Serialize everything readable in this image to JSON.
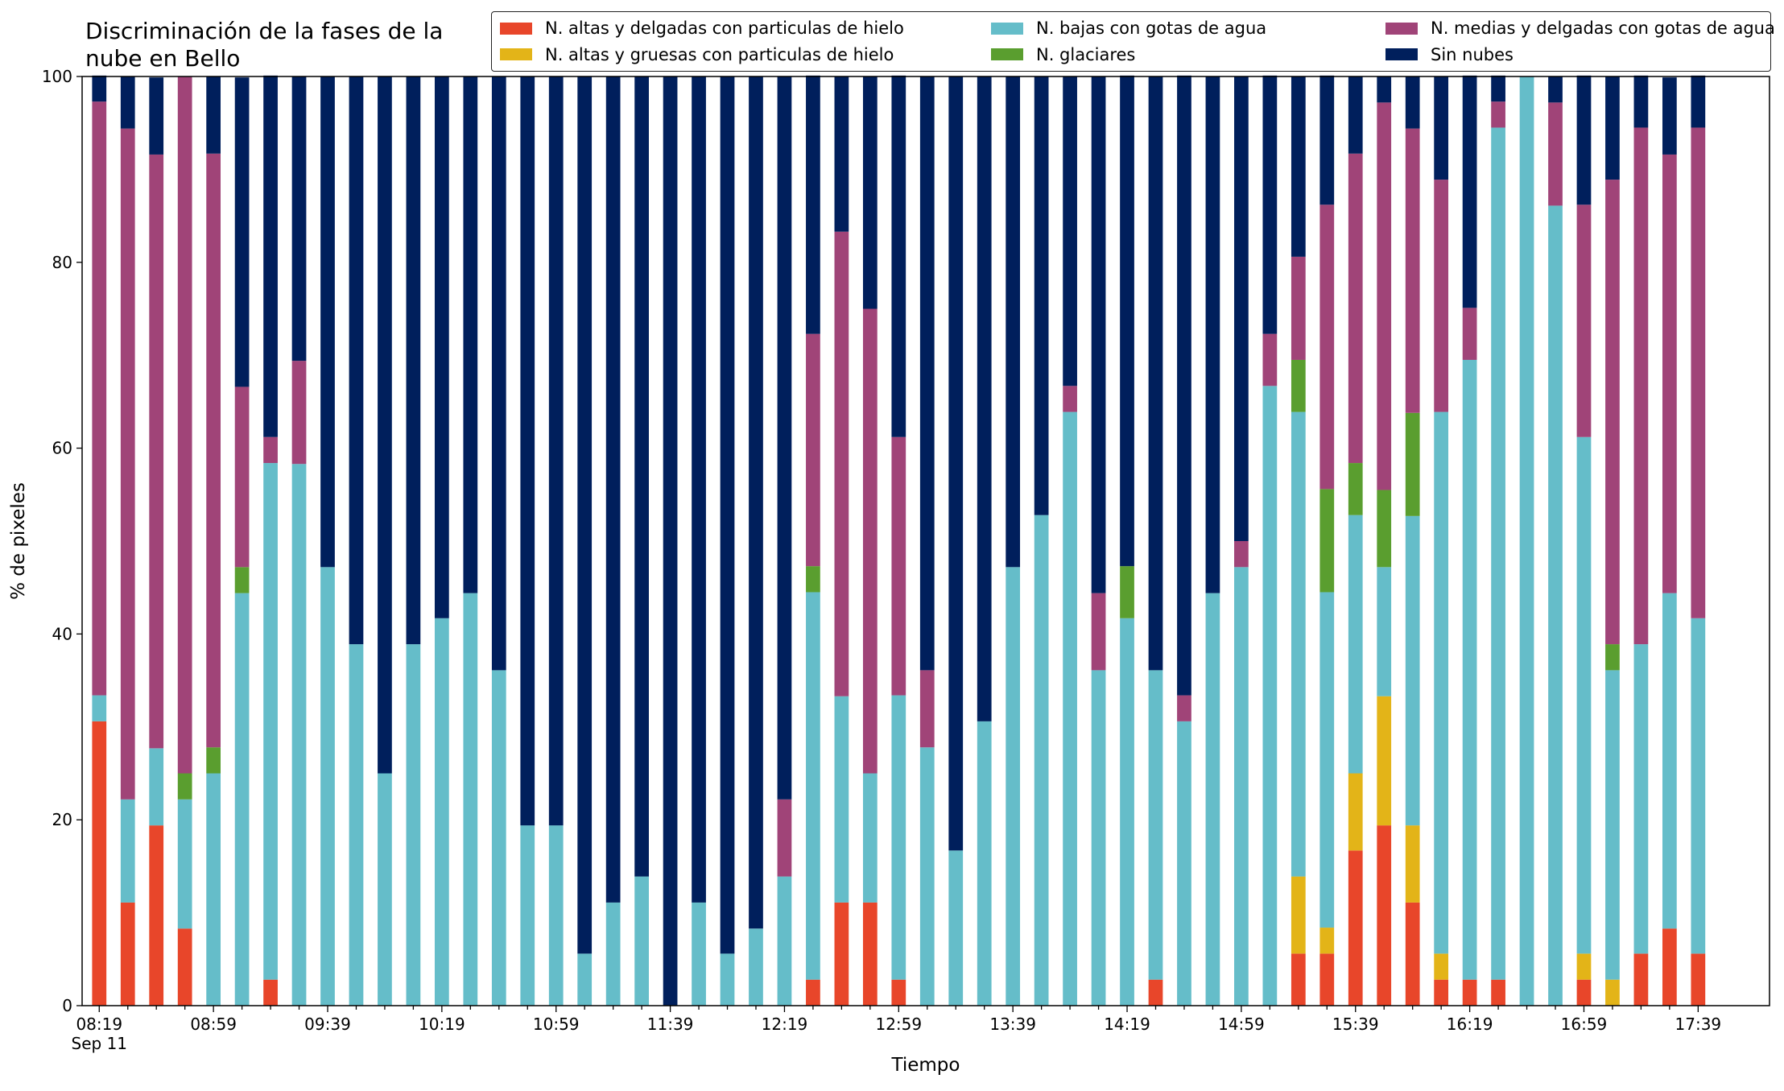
{
  "chart_data": {
    "type": "stacked-bar",
    "title": "Discriminación de la fases de la\nnube en Bello",
    "x_label": "Tiempo",
    "y_label": "% de pixeles",
    "x_date_label": "Sep 11",
    "categories": [
      "08:19",
      null,
      null,
      null,
      "08:59",
      null,
      null,
      null,
      "09:39",
      null,
      null,
      null,
      "10:19",
      null,
      null,
      null,
      "10:59",
      null,
      null,
      null,
      "11:39",
      null,
      null,
      null,
      "12:19",
      null,
      null,
      null,
      "12:59",
      null,
      null,
      null,
      "13:39",
      null,
      null,
      null,
      "14:19",
      null,
      null,
      null,
      "14:59",
      null,
      null,
      null,
      "15:39",
      null,
      null,
      null,
      "16:19",
      null,
      null,
      null,
      "16:59",
      null,
      null,
      null,
      "17:39"
    ],
    "xlim": [
      -0.6,
      58.5
    ],
    "ylim": [
      0,
      100
    ],
    "yticks": [
      0,
      20,
      40,
      60,
      80,
      100
    ],
    "grid": false,
    "legend": "above",
    "legend_columns": 3,
    "series": [
      {
        "name": "N. altas y delgadas con particulas de hielo",
        "color": "#e8462a",
        "values": [
          30.6,
          11.1,
          19.4,
          8.3,
          0,
          0,
          2.8,
          0,
          0,
          0,
          0,
          0,
          0,
          0,
          0,
          0,
          0,
          0,
          0,
          0,
          0,
          0,
          0,
          0,
          0,
          2.8,
          11.1,
          11.1,
          2.8,
          0,
          0,
          0,
          0,
          0,
          0,
          0,
          0,
          2.8,
          0,
          0,
          0,
          0,
          5.6,
          5.6,
          16.7,
          19.4,
          11.1,
          2.8,
          2.8,
          2.8,
          0,
          0,
          2.8,
          0,
          5.6,
          8.3,
          5.6
        ]
      },
      {
        "name": "N. altas y gruesas con particulas de hielo",
        "color": "#e3b418",
        "values": [
          0,
          0,
          0,
          0,
          0,
          0,
          0,
          0,
          0,
          0,
          0,
          0,
          0,
          0,
          0,
          0,
          0,
          0,
          0,
          0,
          0,
          0,
          0,
          0,
          0,
          0,
          0,
          0,
          0,
          0,
          0,
          0,
          0,
          0,
          0,
          0,
          0,
          0,
          0,
          0,
          0,
          0,
          8.3,
          2.8,
          8.3,
          13.9,
          8.3,
          2.8,
          0,
          0,
          0,
          0,
          2.8,
          2.8,
          0,
          0,
          0
        ]
      },
      {
        "name": "N. bajas con gotas de agua",
        "color": "#65bdc9",
        "values": [
          2.8,
          11.1,
          8.3,
          13.9,
          25,
          44.4,
          55.6,
          58.3,
          47.2,
          38.9,
          25,
          38.9,
          41.7,
          44.4,
          36.1,
          19.4,
          19.4,
          5.6,
          11.1,
          13.9,
          0,
          11.1,
          5.6,
          8.3,
          13.9,
          41.7,
          22.2,
          13.9,
          30.6,
          27.8,
          16.7,
          30.6,
          47.2,
          52.8,
          63.9,
          36.1,
          41.7,
          33.3,
          30.6,
          44.4,
          47.2,
          66.7,
          50,
          36.1,
          27.8,
          13.9,
          33.3,
          58.3,
          66.7,
          91.7,
          100,
          86.1,
          55.6,
          33.3,
          33.3,
          36.1,
          36.1
        ]
      },
      {
        "name": "N. glaciares",
        "color": "#5a9e2f",
        "values": [
          0,
          0,
          0,
          2.8,
          2.8,
          2.8,
          0,
          0,
          0,
          0,
          0,
          0,
          0,
          0,
          0,
          0,
          0,
          0,
          0,
          0,
          0,
          0,
          0,
          0,
          0,
          2.8,
          0,
          0,
          0,
          0,
          0,
          0,
          0,
          0,
          0,
          0,
          5.6,
          0,
          0,
          0,
          0,
          0,
          5.6,
          11.1,
          5.6,
          8.3,
          11.1,
          0,
          0,
          0,
          0,
          0,
          0,
          2.8,
          0,
          0,
          0
        ]
      },
      {
        "name": "N. medias y delgadas con gotas de agua",
        "color": "#a04478",
        "values": [
          63.9,
          72.2,
          63.9,
          75,
          63.9,
          19.4,
          2.8,
          11.1,
          0,
          0,
          0,
          0,
          0,
          0,
          0,
          0,
          0,
          0,
          0,
          0,
          0,
          0,
          0,
          0,
          8.3,
          25,
          50,
          50,
          27.8,
          8.3,
          0,
          0,
          0,
          0,
          2.8,
          8.3,
          0,
          0,
          2.8,
          0,
          2.8,
          5.6,
          11.1,
          30.6,
          33.3,
          41.7,
          30.6,
          25,
          5.6,
          2.8,
          0,
          11.1,
          25,
          50,
          55.6,
          47.2,
          52.8
        ]
      },
      {
        "name": "Sin nubes",
        "color": "#001f5c",
        "values": [
          2.8,
          5.6,
          8.3,
          0,
          8.3,
          33.3,
          38.9,
          30.6,
          52.8,
          61.1,
          75,
          61.1,
          58.3,
          55.6,
          63.9,
          80.6,
          80.6,
          94.4,
          88.9,
          86.1,
          100,
          88.9,
          94.4,
          91.7,
          77.8,
          27.8,
          16.7,
          25,
          38.9,
          63.9,
          83.3,
          69.4,
          52.8,
          47.2,
          33.3,
          55.6,
          52.8,
          63.9,
          66.7,
          55.6,
          50,
          27.8,
          19.4,
          13.9,
          8.3,
          2.8,
          5.6,
          11.1,
          25,
          2.8,
          0,
          2.8,
          13.9,
          11.1,
          5.6,
          8.3,
          5.6
        ]
      }
    ]
  }
}
